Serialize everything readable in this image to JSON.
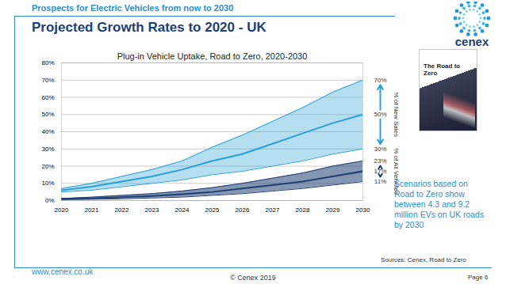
{
  "header": {
    "subtitle": "Prospects for Electric Vehicles from now to 2030",
    "title": "Projected Growth Rates to 2020 - UK",
    "logo": "cenex"
  },
  "chart_data": {
    "type": "area",
    "title": "Plug-in Vehicle Uptake, Road to Zero, 2020-2030",
    "x": [
      2020,
      2021,
      2022,
      2023,
      2024,
      2025,
      2026,
      2027,
      2028,
      2029,
      2030
    ],
    "xlim": [
      2020,
      2030
    ],
    "xticks": [
      2020,
      2021,
      2022,
      2023,
      2024,
      2025,
      2026,
      2027,
      2028,
      2029,
      2030
    ],
    "ylim": [
      0,
      80
    ],
    "yticks": [
      {
        "value": 0,
        "label": "0%"
      },
      {
        "value": 10,
        "label": "10%"
      },
      {
        "value": 20,
        "label": "20%"
      },
      {
        "value": 30,
        "label": "30%"
      },
      {
        "value": 40,
        "label": "40%"
      },
      {
        "value": 50,
        "label": "50%"
      },
      {
        "value": 60,
        "label": "60%"
      },
      {
        "value": 70,
        "label": "70%"
      },
      {
        "value": 80,
        "label": "80%"
      }
    ],
    "grid": true,
    "bands": [
      {
        "label": "% of New Sales",
        "color": "#2aa0d8",
        "low": [
          5,
          6,
          8,
          10,
          12,
          15,
          17,
          20,
          23,
          27,
          30
        ],
        "mid": [
          6,
          8,
          11,
          14,
          18,
          23,
          27,
          33,
          39,
          45,
          50
        ],
        "high": [
          7,
          10,
          14,
          18,
          23,
          31,
          38,
          46,
          54,
          63,
          70
        ],
        "end_labels": [
          "70%",
          "50%",
          "30%"
        ]
      },
      {
        "label": "% of All Vehicles",
        "color": "#1f3f73",
        "low": [
          0.5,
          0.7,
          1,
          1.5,
          2,
          3,
          4,
          5.5,
          7,
          9,
          11
        ],
        "mid": [
          1,
          1.3,
          2,
          2.7,
          3.7,
          5,
          7,
          9,
          11,
          14,
          17
        ],
        "high": [
          1.2,
          2,
          3,
          4,
          5.5,
          7.5,
          10,
          13,
          16,
          20,
          23
        ],
        "end_labels": [
          "23%",
          "17%",
          "11%"
        ]
      }
    ]
  },
  "cover": {
    "title": "The Road to Zero"
  },
  "note": "Scenarios based on Road to Zero show between 4.3 and 9.2 million EVs on UK roads by 2030",
  "footer": {
    "source": "Sources: Cenex, Road to Zero",
    "url": "www.cenex.co.uk",
    "copyright": "© Cenex 2019",
    "page": "Page 6"
  }
}
